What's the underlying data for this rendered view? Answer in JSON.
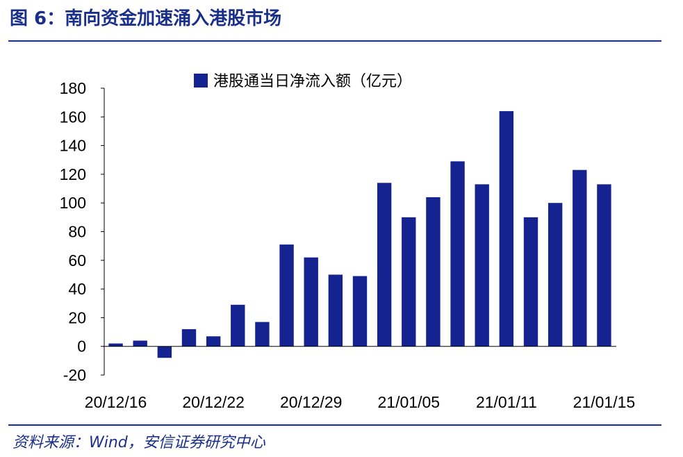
{
  "figure": {
    "title": "图 6：南向资金加速涌入港股市场",
    "source": "资料来源：Wind，安信证券研究中心"
  },
  "colors": {
    "bar": "#14238f",
    "title": "#1a2f8a",
    "axis": "#000000"
  },
  "chart_data": {
    "type": "bar",
    "title": "",
    "xlabel": "",
    "ylabel": "",
    "ylim": [
      -20,
      180
    ],
    "yticks": [
      -20,
      0,
      20,
      40,
      60,
      80,
      100,
      120,
      140,
      160,
      180
    ],
    "grid": false,
    "legend_position": "top",
    "series": [
      {
        "name": "港股通当日净流入额（亿元）",
        "values": [
          2,
          4,
          -8,
          12,
          7,
          29,
          17,
          71,
          62,
          50,
          49,
          114,
          90,
          104,
          129,
          113,
          164,
          90,
          100,
          123,
          113
        ]
      }
    ],
    "x_tick_labels": [
      {
        "index": 0,
        "label": "20/12/16"
      },
      {
        "index": 4,
        "label": "20/12/22"
      },
      {
        "index": 8,
        "label": "20/12/29"
      },
      {
        "index": 12,
        "label": "21/01/05"
      },
      {
        "index": 16,
        "label": "21/01/11"
      },
      {
        "index": 20,
        "label": "21/01/15"
      }
    ]
  }
}
